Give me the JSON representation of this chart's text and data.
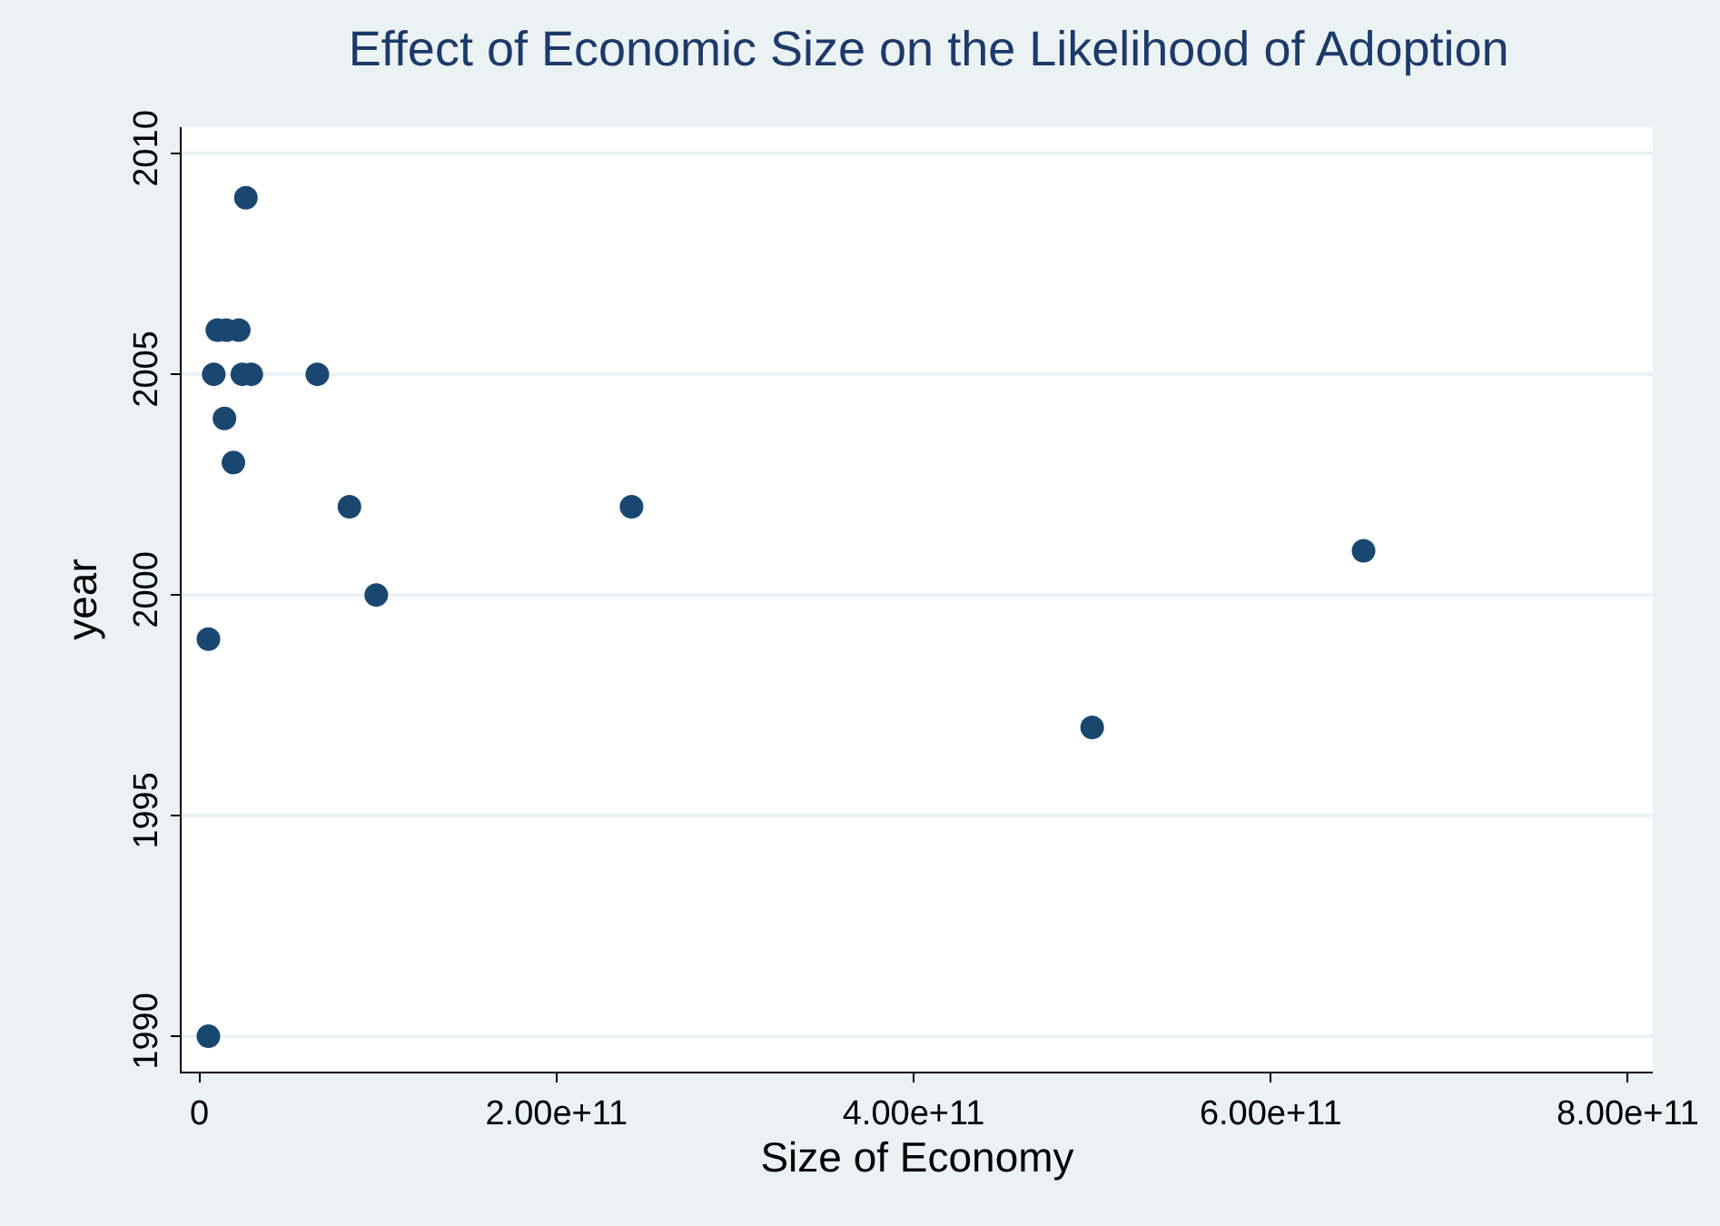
{
  "chart_data": {
    "type": "scatter",
    "title": "Effect of Economic Size on the Likelihood of Adoption",
    "xlabel": "Size of Economy",
    "ylabel": "year",
    "x": [
      26000000000.0,
      10000000000.0,
      15000000000.0,
      22000000000.0,
      8000000000.0,
      24000000000.0,
      29000000000.0,
      66000000000.0,
      14000000000.0,
      19000000000.0,
      84000000000.0,
      242000000000.0,
      652000000000.0,
      99000000000.0,
      5000000000.0,
      500000000000.0,
      5000000000.0
    ],
    "values": [
      2009,
      2006,
      2006,
      2006,
      2005,
      2005,
      2005,
      2005,
      2004,
      2003,
      2002,
      2002,
      2001,
      2000,
      1999,
      1997,
      1990
    ],
    "color": "#1a476f",
    "marker": "circle",
    "xlim": [
      -10000000000.0,
      814000000000.0
    ],
    "xticks": [
      0,
      {
        "value": 200000000000.0,
        "label": "2.00e+11"
      },
      {
        "value": 400000000000.0,
        "label": "4.00e+11"
      },
      {
        "value": 600000000000.0,
        "label": "6.00e+11"
      },
      {
        "value": 800000000000.0,
        "label": "8.00e+11"
      }
    ],
    "ylim": [
      1989.2,
      2010.6
    ],
    "yticks": [
      1990,
      1995,
      2000,
      2005,
      2010
    ],
    "grid": "y",
    "legend": false
  }
}
